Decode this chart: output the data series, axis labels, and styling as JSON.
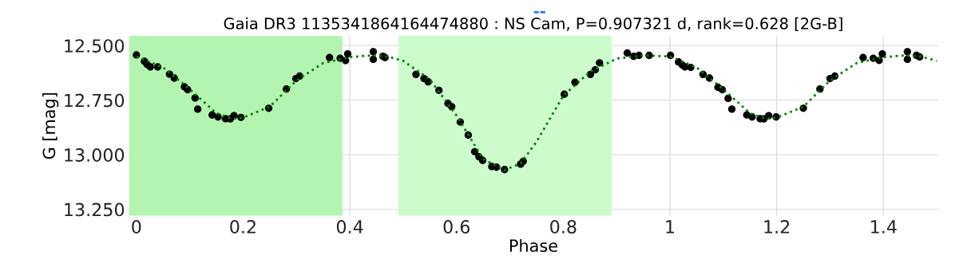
{
  "chart_data": {
    "type": "scatter",
    "title": "Gaia DR3 1135341864164474880 : NS Cam, P=0.907321 d, rank=0.628 [2G-B]",
    "xlabel": "Phase",
    "ylabel": "G [mag]",
    "annotations": [
      "--"
    ],
    "xlim": [
      -0.014,
      1.502
    ],
    "xticks": [
      0,
      0.2,
      0.4,
      0.6,
      0.8,
      1,
      1.2,
      1.4
    ],
    "ylim": [
      13.28,
      12.455
    ],
    "yticks": [
      {
        "value": 12.5,
        "label": "12.500"
      },
      {
        "value": 12.75,
        "label": "12.750"
      },
      {
        "value": 13.0,
        "label": "13.000"
      },
      {
        "value": 13.25,
        "label": "13.250"
      }
    ],
    "grid": true,
    "bands": [
      {
        "axis": "x",
        "from": -0.014,
        "to": 0.386,
        "color": "#b3f5b0"
      },
      {
        "axis": "x",
        "from": 0.491,
        "to": 0.891,
        "color": "#ccfccc"
      }
    ],
    "series": [
      {
        "color": "#000000",
        "marker": "circle",
        "x": [
          0.0,
          0.015,
          0.02,
          0.026,
          0.04,
          0.062,
          0.071,
          0.09,
          0.096,
          0.11,
          0.115,
          0.142,
          0.153,
          0.167,
          0.176,
          0.183,
          0.196,
          0.248,
          0.281,
          0.299,
          0.306,
          0.362,
          0.382,
          0.392,
          0.396,
          0.444,
          0.444,
          0.462,
          0.466,
          0.524,
          0.539,
          0.547,
          0.567,
          0.584,
          0.591,
          0.607,
          0.622,
          0.634,
          0.642,
          0.649,
          0.666,
          0.675,
          0.69,
          0.72,
          0.725,
          0.802,
          0.822,
          0.851,
          0.86,
          0.868,
          0.92,
          0.932,
          0.942,
          0.961,
          1.001,
          1.016,
          1.023,
          1.028,
          1.039,
          1.062,
          1.074,
          1.09,
          1.098,
          1.109,
          1.116,
          1.144,
          1.154,
          1.169,
          1.176,
          1.185,
          1.199,
          1.25,
          1.281,
          1.3,
          1.309,
          1.362,
          1.381,
          1.392,
          1.398,
          1.445,
          1.445,
          1.462,
          1.468
        ],
        "values": [
          12.543,
          12.572,
          12.586,
          12.598,
          12.598,
          12.631,
          12.649,
          12.689,
          12.702,
          12.74,
          12.791,
          12.818,
          12.827,
          12.835,
          12.836,
          12.821,
          12.829,
          12.787,
          12.699,
          12.651,
          12.64,
          12.555,
          12.558,
          12.569,
          12.538,
          12.528,
          12.563,
          12.549,
          12.555,
          12.632,
          12.651,
          12.666,
          12.705,
          12.765,
          12.78,
          12.85,
          12.91,
          12.986,
          13.009,
          13.026,
          13.054,
          13.057,
          13.068,
          13.043,
          13.03,
          12.723,
          12.668,
          12.632,
          12.611,
          12.579,
          12.534,
          12.549,
          12.545,
          12.545,
          12.545,
          12.575,
          12.589,
          12.598,
          12.6,
          12.632,
          12.649,
          12.691,
          12.702,
          12.742,
          12.791,
          12.818,
          12.827,
          12.835,
          12.836,
          12.821,
          12.827,
          12.787,
          12.699,
          12.651,
          12.64,
          12.555,
          12.558,
          12.568,
          12.538,
          12.528,
          12.563,
          12.545,
          12.552
        ]
      },
      {
        "type": "line",
        "color": "#008000",
        "line_style": "dotted",
        "marker": "none",
        "x": [
          0,
          0.05,
          0.1,
          0.15,
          0.18,
          0.2,
          0.25,
          0.3,
          0.35,
          0.4,
          0.44,
          0.47,
          0.5,
          0.55,
          0.6,
          0.65,
          0.69,
          0.72,
          0.75,
          0.8,
          0.85,
          0.9,
          0.95,
          1.0,
          1.05,
          1.1,
          1.15,
          1.18,
          1.2,
          1.25,
          1.3,
          1.35,
          1.4,
          1.44,
          1.47,
          1.5
        ],
        "values": [
          12.55,
          12.6,
          12.7,
          12.81,
          12.835,
          12.83,
          12.78,
          12.66,
          12.58,
          12.553,
          12.545,
          12.55,
          12.57,
          12.655,
          12.82,
          13.02,
          13.07,
          13.04,
          12.94,
          12.73,
          12.62,
          12.56,
          12.545,
          12.55,
          12.6,
          12.7,
          12.81,
          12.835,
          12.83,
          12.78,
          12.66,
          12.58,
          12.553,
          12.545,
          12.55,
          12.57
        ]
      }
    ]
  }
}
